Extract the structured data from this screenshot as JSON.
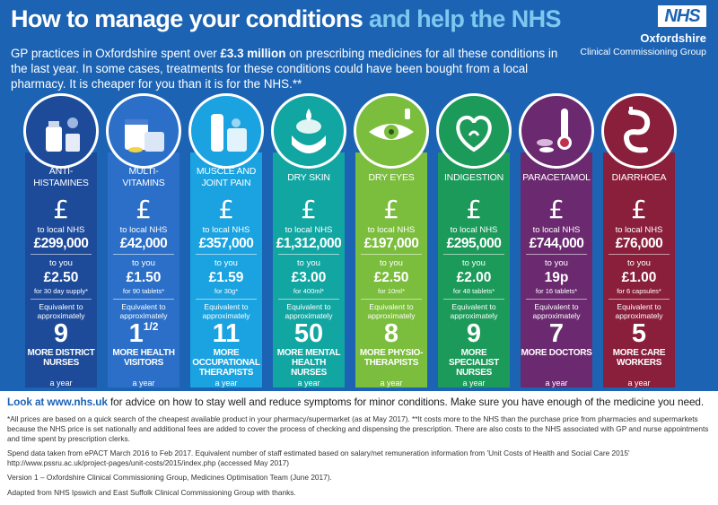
{
  "header": {
    "title_main": "How to manage your conditions",
    "title_highlight": "and help the NHS",
    "intro_before": "GP practices in Oxfordshire spent over ",
    "intro_bold": "£3.3 million",
    "intro_after": " on prescribing medicines for all these conditions in the last year. In some cases, treatments for these conditions could have been bought from a local pharmacy. It is cheaper for you than it is for the NHS.**"
  },
  "logo": {
    "nhs": "NHS",
    "org_line1": "Oxfordshire",
    "org_line2": "Clinical Commissioning Group"
  },
  "common": {
    "pound": "£",
    "to_nhs": "to local NHS",
    "to_you": "to you",
    "equiv": "Equivalent to approximately",
    "year": "a year"
  },
  "colors": {
    "header_bg": "#1c63b4",
    "title_highlight": "#7ec8ef"
  },
  "conditions": [
    {
      "name": "ANTI-HISTAMINES",
      "icon": "antihistamine-icon",
      "color": "#1d4b9a",
      "nhs": "£299,000",
      "you": "£2.50",
      "size": "for 30 day supply*",
      "num": "9",
      "sup": "",
      "more": "MORE DISTRICT NURSES"
    },
    {
      "name": "MULTI-VITAMINS",
      "icon": "multivitamin-icon",
      "color": "#2b6fc8",
      "nhs": "£42,000",
      "you": "£1.50",
      "size": "for 90 tablets*",
      "num": "1",
      "sup": "1/2",
      "more": "MORE HEALTH VISITORS"
    },
    {
      "name": "MUSCLE AND JOINT PAIN",
      "icon": "pain-gel-icon",
      "color": "#1aa3e0",
      "nhs": "£357,000",
      "you": "£1.59",
      "size": "for 30g*",
      "num": "11",
      "sup": "",
      "more": "MORE OCCUPATIONAL THERAPISTS"
    },
    {
      "name": "DRY SKIN",
      "icon": "dry-skin-icon",
      "color": "#12a6a3",
      "nhs": "£1,312,000",
      "you": "£3.00",
      "size": "for 400ml*",
      "num": "50",
      "sup": "",
      "more": "MORE MENTAL HEALTH NURSES"
    },
    {
      "name": "DRY EYES",
      "icon": "eye-drops-icon",
      "color": "#7bbd3c",
      "nhs": "£197,000",
      "you": "£2.50",
      "size": "for 10ml*",
      "num": "8",
      "sup": "",
      "more": "MORE PHYSIO-THERAPISTS"
    },
    {
      "name": "INDIGESTION",
      "icon": "indigestion-icon",
      "color": "#1c9a5a",
      "nhs": "£295,000",
      "you": "£2.00",
      "size": "for 48 tablets*",
      "num": "9",
      "sup": "",
      "more": "MORE SPECIALIST NURSES"
    },
    {
      "name": "PARACETAMOL",
      "icon": "thermometer-icon",
      "color": "#6b2a6f",
      "nhs": "£744,000",
      "you": "19p",
      "size": "for 16 tablets*",
      "num": "7",
      "sup": "",
      "more": "MORE DOCTORS"
    },
    {
      "name": "DIARRHOEA",
      "icon": "digestive-icon",
      "color": "#8a1f3c",
      "nhs": "£76,000",
      "you": "£1.00",
      "size": "for 6 capsules*",
      "num": "5",
      "sup": "",
      "more": "MORE CARE WORKERS"
    }
  ],
  "footer": {
    "lead_url": "Look at www.nhs.uk",
    "lead_text": " for advice on how to stay well and reduce symptoms for minor conditions. Make sure you have enough of the medicine you need.",
    "note1": "*All prices are based on a quick search of the cheapest available product in your pharmacy/supermarket (as at May 2017). **It costs more to the NHS than the purchase price from pharmacies and supermarkets because the NHS price is set nationally and additional fees are added to cover the process of checking and dispensing the prescription. There are also costs to the NHS associated with GP and nurse appointments and time spent by prescription clerks.",
    "note2": "Spend data taken from ePACT March 2016 to Feb 2017. Equivalent number of staff estimated based on salary/net remuneration information from 'Unit Costs of Health and Social Care 2015' http://www.pssru.ac.uk/project-pages/unit-costs/2015/index.php (accessed May 2017)",
    "note3": "Version 1 – Oxfordshire Clinical Commissioning Group, Medicines Optimisation Team (June 2017).",
    "note4": "Adapted from NHS Ipswich and East Suffolk Clinical Commissioning Group with thanks."
  }
}
